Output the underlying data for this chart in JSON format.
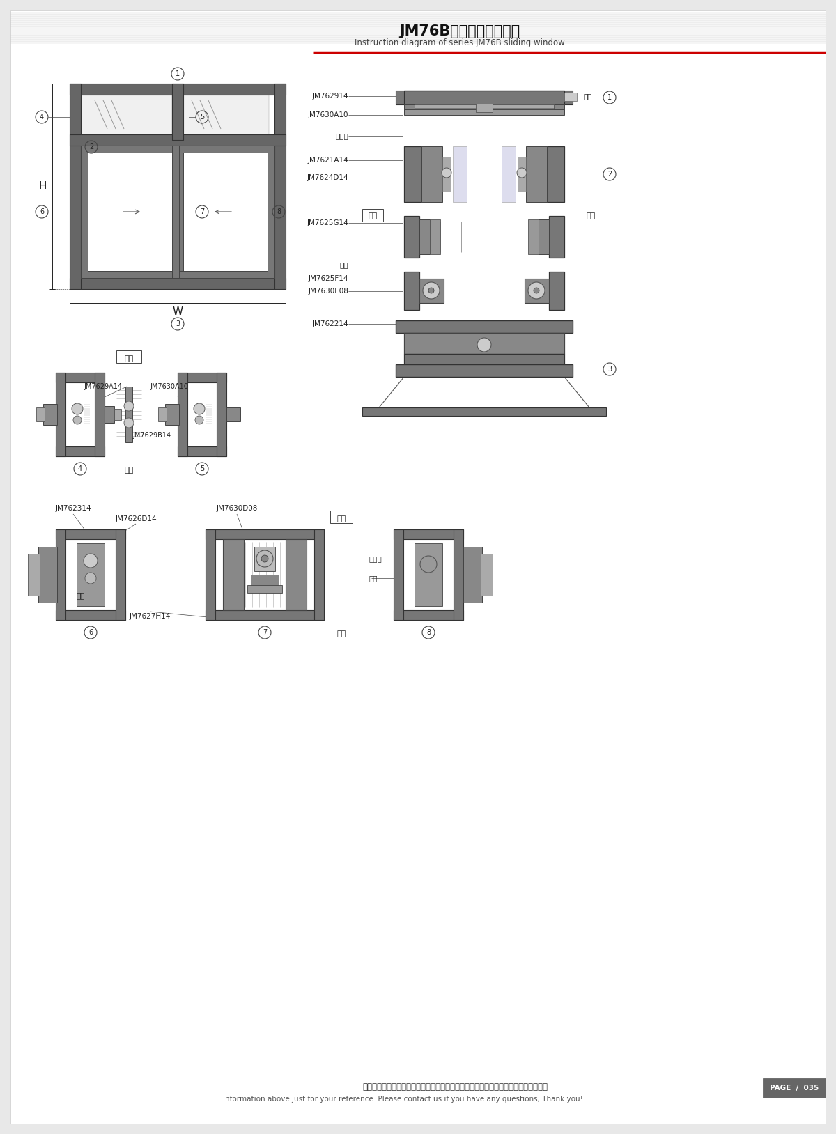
{
  "title_cn": "JM76B系列推拉窗结构图",
  "title_en": "Instruction diagram of series JM76B sliding window",
  "footer_cn": "图中所示型材截面、装配、编号、尺寸及重量仅供参考。如有病问，请向本公司查询。",
  "footer_en": "Information above just for your reference. Please contact us if you have any questions, Thank you!",
  "page": "PAGE  /  035",
  "bg_color": "#e8e8e8",
  "paper_color": "#ffffff",
  "line_color": "#444444",
  "dark_color": "#222222",
  "gray_fill": "#888888",
  "light_gray": "#bbbbbb"
}
